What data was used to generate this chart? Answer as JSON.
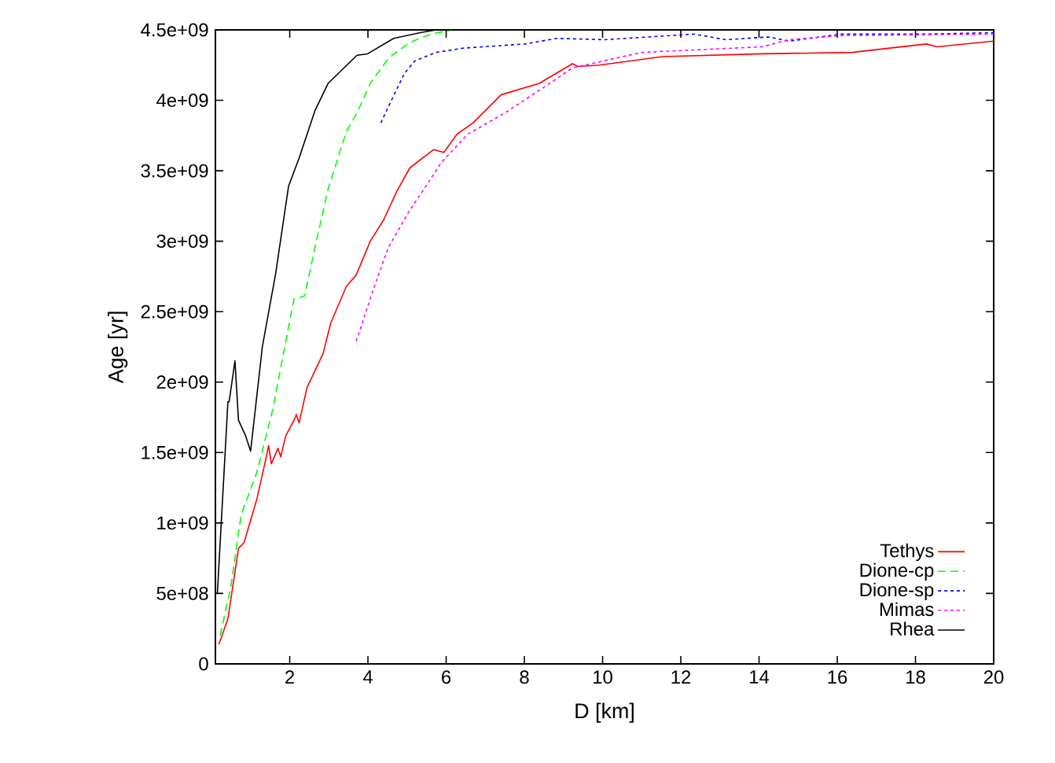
{
  "chart_data": {
    "type": "line",
    "xlabel": "D [km]",
    "ylabel": "Age [yr]",
    "xlim": [
      0.1,
      20
    ],
    "xticks": [
      2,
      4,
      6,
      8,
      10,
      12,
      14,
      16,
      18,
      20
    ],
    "ylim": [
      0,
      4500000000.0
    ],
    "yticks": [
      0,
      {
        "value": 500000000.0,
        "label": "5e+08"
      },
      {
        "value": 1000000000.0,
        "label": "1e+09"
      },
      {
        "value": 1500000000.0,
        "label": "1.5e+09"
      },
      {
        "value": 2000000000.0,
        "label": "2e+09"
      },
      {
        "value": 2500000000.0,
        "label": "2.5e+09"
      },
      {
        "value": 3000000000.0,
        "label": "3e+09"
      },
      {
        "value": 3500000000.0,
        "label": "3.5e+09"
      },
      {
        "value": 4000000000.0,
        "label": "4e+09"
      },
      {
        "value": 4500000000.0,
        "label": "4.5e+09"
      }
    ],
    "legend": "bottom right",
    "series": [
      {
        "name": "Tethys",
        "color": "#ff0000",
        "line_style": "solid",
        "x": [
          0.19,
          0.42,
          0.69,
          0.83,
          1.16,
          1.37,
          1.46,
          1.53,
          1.7,
          1.77,
          1.9,
          2.11,
          2.17,
          2.24,
          2.44,
          2.85,
          3.05,
          3.45,
          3.7,
          4.06,
          4.4,
          4.73,
          5.07,
          5.68,
          5.94,
          6.28,
          6.69,
          7.41,
          8.38,
          9.23,
          9.37,
          9.92,
          11.53,
          14.08,
          16.38,
          18.28,
          18.55,
          20
        ],
        "values": [
          140000000.0,
          320000000.0,
          820000000.0,
          860000000.0,
          1170000000.0,
          1430000000.0,
          1550000000.0,
          1420000000.0,
          1530000000.0,
          1470000000.0,
          1620000000.0,
          1730000000.0,
          1770000000.0,
          1710000000.0,
          1960000000.0,
          2200000000.0,
          2420000000.0,
          2680000000.0,
          2760000000.0,
          3000000000.0,
          3150000000.0,
          3350000000.0,
          3520000000.0,
          3650000000.0,
          3630000000.0,
          3760000000.0,
          3840000000.0,
          4040000000.0,
          4120000000.0,
          4260000000.0,
          4240000000.0,
          4250000000.0,
          4310000000.0,
          4330000000.0,
          4340000000.0,
          4400000000.0,
          4380000000.0,
          4420000000.0
        ]
      },
      {
        "name": "Dione-cp",
        "color": "#00ff00",
        "line_style": "dashed",
        "x": [
          0.22,
          0.49,
          0.76,
          1.16,
          1.57,
          1.9,
          2.11,
          2.38,
          2.65,
          2.98,
          3.45,
          3.72,
          4.06,
          4.53,
          5.07,
          5.61,
          6.15
        ],
        "values": [
          200000000.0,
          540000000.0,
          1060000000.0,
          1360000000.0,
          1810000000.0,
          2290000000.0,
          2590000000.0,
          2610000000.0,
          2960000000.0,
          3370000000.0,
          3780000000.0,
          3910000000.0,
          4120000000.0,
          4300000000.0,
          4410000000.0,
          4470000000.0,
          4500000000.0
        ]
      },
      {
        "name": "Dione-sp",
        "color": "#0000ff",
        "line_style": "dotted",
        "x": [
          4.33,
          4.6,
          4.93,
          5.2,
          5.74,
          6.42,
          7.49,
          8.02,
          8.83,
          10.04,
          12.34,
          13.15,
          14.24,
          14.77,
          16.1,
          18.28,
          20
        ],
        "values": [
          3840000000.0,
          4000000000.0,
          4190000000.0,
          4280000000.0,
          4340000000.0,
          4370000000.0,
          4390000000.0,
          4400000000.0,
          4440000000.0,
          4430000000.0,
          4470000000.0,
          4430000000.0,
          4450000000.0,
          4420000000.0,
          4470000000.0,
          4470000000.0,
          4480000000.0
        ]
      },
      {
        "name": "Mimas",
        "color": "#ff00ff",
        "line_style": "dotted",
        "x": [
          3.7,
          4.19,
          4.53,
          5.07,
          5.34,
          5.88,
          6.55,
          6.69,
          7.5,
          8.43,
          9.23,
          11.0,
          14.08,
          14.77,
          16.1,
          20
        ],
        "values": [
          2290000000.0,
          2700000000.0,
          2960000000.0,
          3220000000.0,
          3330000000.0,
          3560000000.0,
          3760000000.0,
          3780000000.0,
          3910000000.0,
          4080000000.0,
          4230000000.0,
          4340000000.0,
          4380000000.0,
          4430000000.0,
          4460000000.0,
          4470000000.0
        ]
      },
      {
        "name": "Rhea",
        "color": "#000000",
        "line_style": "solid",
        "x": [
          0.15,
          0.42,
          0.45,
          0.6,
          0.69,
          0.87,
          1.0,
          1.3,
          1.64,
          1.97,
          2.24,
          2.65,
          2.98,
          3.72,
          3.99,
          4.66,
          5.34,
          5.74,
          20
        ],
        "values": [
          500000000.0,
          1860000000.0,
          1860000000.0,
          2150000000.0,
          1730000000.0,
          1620000000.0,
          1510000000.0,
          2250000000.0,
          2770000000.0,
          3390000000.0,
          3590000000.0,
          3930000000.0,
          4120000000.0,
          4320000000.0,
          4330000000.0,
          4440000000.0,
          4480000000.0,
          4500000000.0,
          4500000000.0
        ]
      }
    ]
  }
}
